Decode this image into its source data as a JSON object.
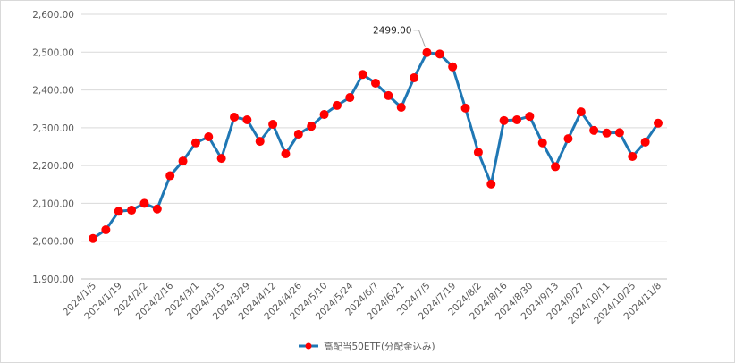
{
  "chart_data": {
    "type": "line",
    "title": "",
    "xlabel": "",
    "ylabel": "",
    "ylim": [
      1900,
      2600
    ],
    "yticks": [
      1900,
      2000,
      2100,
      2200,
      2300,
      2400,
      2500,
      2600
    ],
    "ytick_labels": [
      "1,900.00",
      "2,000.00",
      "2,100.00",
      "2,200.00",
      "2,300.00",
      "2,400.00",
      "2,500.00",
      "2,600.00"
    ],
    "grid": true,
    "legend_position": "bottom",
    "x_tick_labels": [
      "2024/1/5",
      "2024/1/19",
      "2024/2/2",
      "2024/2/16",
      "2024/3/1",
      "2024/3/15",
      "2024/3/29",
      "2024/4/12",
      "2024/4/26",
      "2024/5/10",
      "2024/5/24",
      "2024/6/7",
      "2024/6/21",
      "2024/7/5",
      "2024/7/19",
      "2024/8/2",
      "2024/8/16",
      "2024/8/30",
      "2024/9/13",
      "2024/9/27",
      "2024/10/11",
      "2024/10/25",
      "2024/11/8"
    ],
    "series": [
      {
        "name": "高配当50ETF(分配金込み)",
        "color": "#1f77b4",
        "marker_color": "#ff0000",
        "values": [
          2007,
          2030,
          2079,
          2082,
          2100,
          2085,
          2173,
          2212,
          2260,
          2276,
          2219,
          2328,
          2321,
          2264,
          2309,
          2231,
          2283,
          2304,
          2335,
          2359,
          2380,
          2441,
          2418,
          2385,
          2354,
          2432,
          2499,
          2495,
          2461,
          2352,
          2235,
          2151,
          2319,
          2321,
          2330,
          2260,
          2197,
          2271,
          2342,
          2293,
          2286,
          2287,
          2224,
          2262,
          2312
        ]
      }
    ],
    "annotations": [
      {
        "text": "2499.00",
        "point_index": 26
      }
    ]
  }
}
